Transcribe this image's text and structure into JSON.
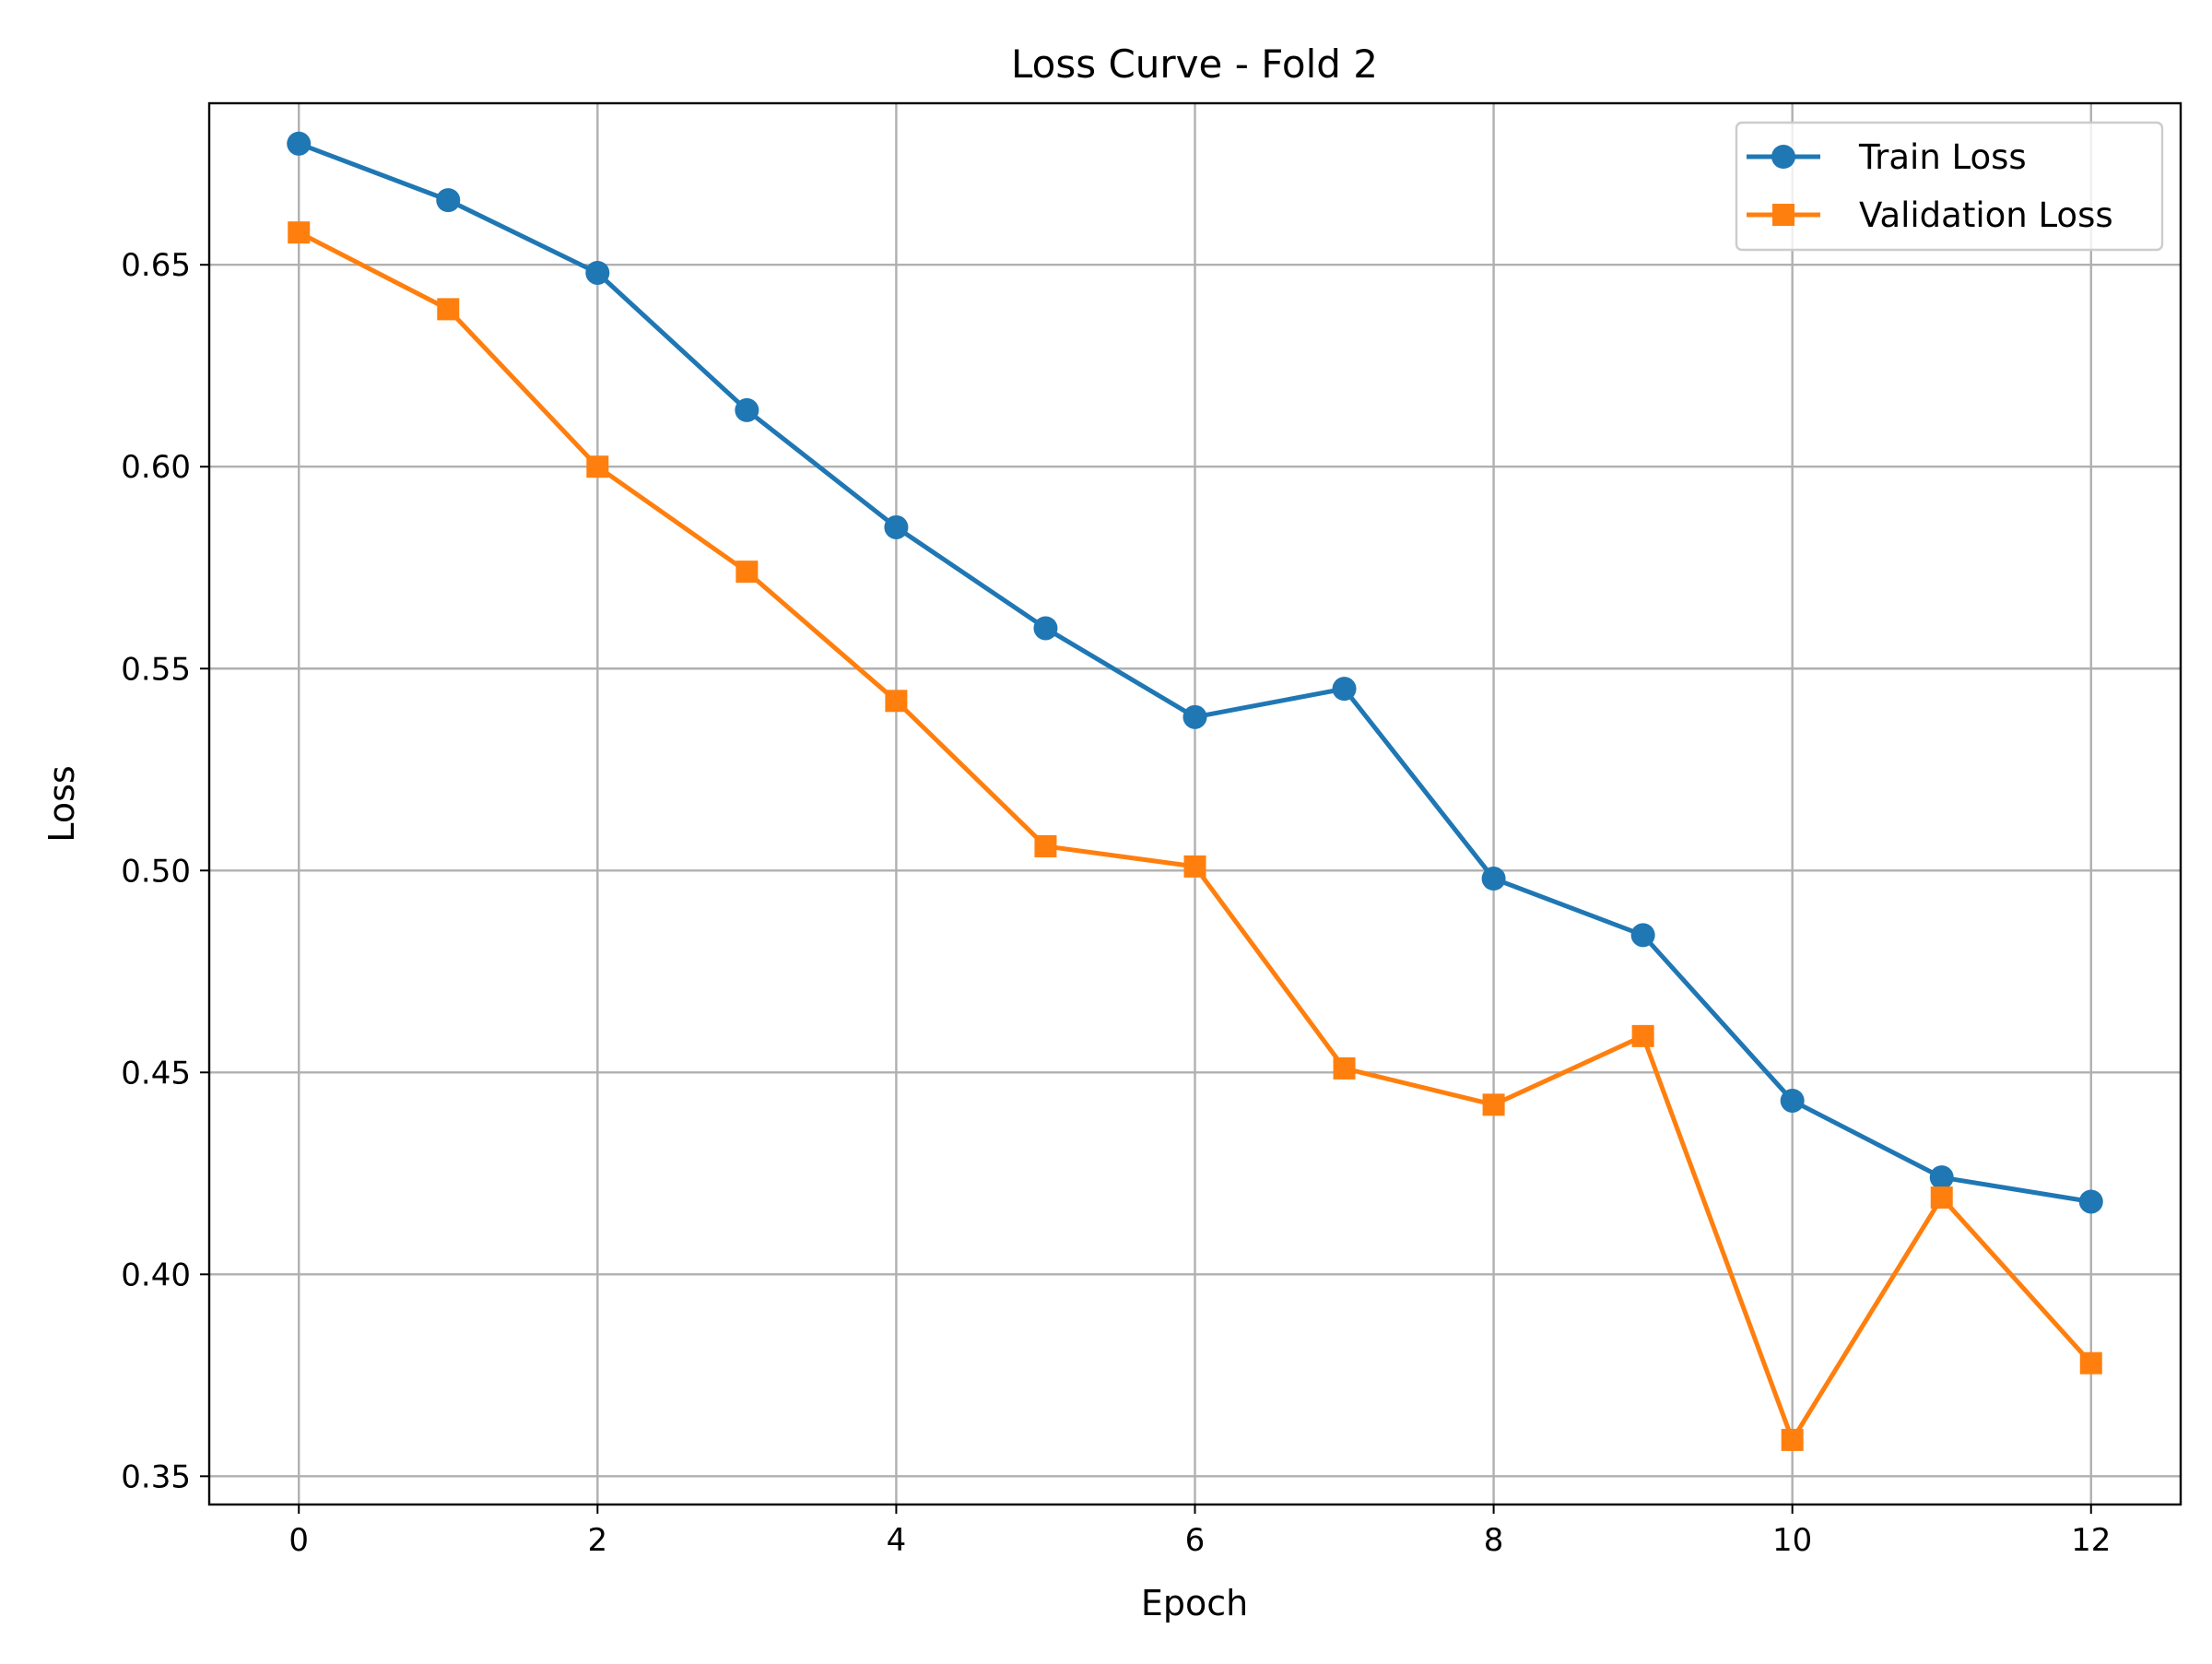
{
  "chart_data": {
    "type": "line",
    "title": "Loss Curve - Fold 2",
    "xlabel": "Epoch",
    "ylabel": "Loss",
    "x": [
      0,
      1,
      2,
      3,
      4,
      5,
      6,
      7,
      8,
      9,
      10,
      11,
      12
    ],
    "xlim": [
      -0.6,
      12.6
    ],
    "ylim": [
      0.343,
      0.69
    ],
    "xticks": [
      0,
      2,
      4,
      6,
      8,
      10,
      12
    ],
    "yticks": [
      0.35,
      0.4,
      0.45,
      0.5,
      0.55,
      0.6,
      0.65
    ],
    "xtick_labels": [
      "0",
      "2",
      "4",
      "6",
      "8",
      "10",
      "12"
    ],
    "ytick_labels": [
      "0.35",
      "0.40",
      "0.45",
      "0.50",
      "0.55",
      "0.60",
      "0.65"
    ],
    "grid": true,
    "legend_position": "top-right",
    "series": [
      {
        "name": "Train Loss",
        "color": "#1f77b4",
        "marker": "circle",
        "values": [
          0.68,
          0.666,
          0.648,
          0.614,
          0.585,
          0.56,
          0.538,
          0.545,
          0.498,
          0.484,
          0.443,
          0.424,
          0.418
        ]
      },
      {
        "name": "Validation Loss",
        "color": "#ff7f0e",
        "marker": "square",
        "values": [
          0.658,
          0.639,
          0.6,
          0.574,
          0.542,
          0.506,
          0.501,
          0.451,
          0.442,
          0.459,
          0.359,
          0.419,
          0.378
        ]
      }
    ]
  }
}
